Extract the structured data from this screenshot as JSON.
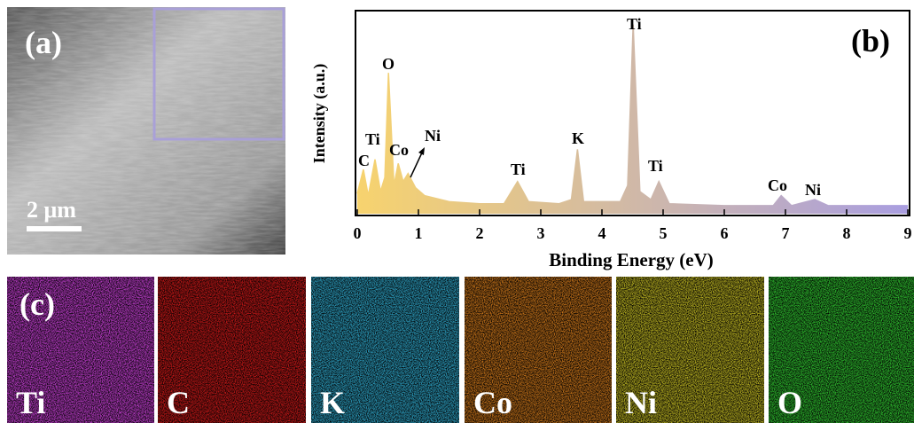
{
  "panel_labels": [
    "(a)",
    "(b)",
    "(c)"
  ],
  "scale_bar": "2 μm",
  "chart_data": {
    "type": "area",
    "xlabel": "Binding Energy (eV)",
    "ylabel": "Intensity (a.u.)",
    "x": [
      0,
      0.1,
      0.18,
      0.29,
      0.38,
      0.45,
      0.51,
      0.6,
      0.67,
      0.75,
      0.83,
      0.95,
      1.1,
      1.5,
      2.0,
      2.4,
      2.62,
      2.8,
      3.3,
      3.5,
      3.6,
      3.7,
      4.3,
      4.42,
      4.51,
      4.62,
      4.8,
      4.93,
      5.1,
      6.0,
      6.8,
      6.93,
      7.1,
      7.48,
      7.7,
      9.0
    ],
    "values": [
      10,
      22,
      9,
      27,
      11,
      18,
      70,
      14,
      25,
      16,
      20,
      13,
      9,
      6,
      5,
      5,
      16,
      6,
      5,
      7,
      32,
      6,
      6,
      14,
      94,
      11,
      7,
      16,
      5,
      4,
      4,
      9,
      4,
      7,
      4,
      4
    ],
    "xlim": [
      0,
      9
    ],
    "xticks": [
      0,
      1,
      2,
      3,
      4,
      5,
      6,
      7,
      8,
      9
    ],
    "ylim": [
      0,
      100
    ],
    "color_start": "#f7d36e",
    "color_end": "#a99ee0",
    "annotations": [
      "C",
      "Ti",
      "O",
      "Co",
      "Ni",
      "Ti",
      "K",
      "Ti",
      "Ti",
      "Co",
      "Ni"
    ]
  },
  "maps": [
    {
      "label": "Ti",
      "color": "#c43fd2"
    },
    {
      "label": "C",
      "color": "#c81818"
    },
    {
      "label": "K",
      "color": "#2ea2c4"
    },
    {
      "label": "Co",
      "color": "#c8741a"
    },
    {
      "label": "Ni",
      "color": "#bdb522"
    },
    {
      "label": "O",
      "color": "#2fbf2f"
    }
  ]
}
